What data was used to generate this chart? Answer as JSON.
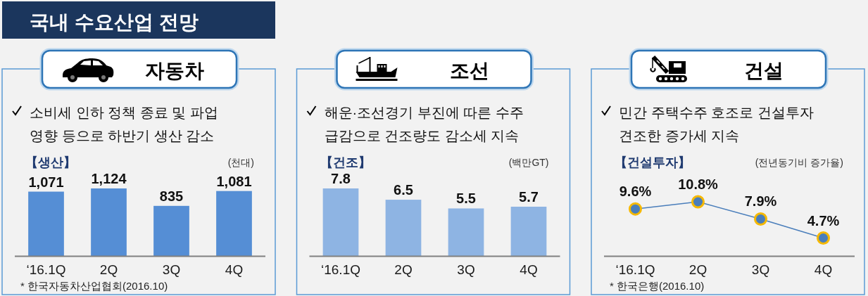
{
  "chart_data": [
    {
      "type": "other",
      "title": "국내 수요산업 전망"
    },
    {
      "type": "bar",
      "title": "자동차",
      "subtitle": "소비세 인하 정책 종료 및 파업 영향 등으로 하반기 생산 감소",
      "ylabel": "(천대)",
      "annotations": [
        "【생산】",
        "* 한국자동차산업협회(2016.10)"
      ],
      "categories": [
        "‘16.1Q",
        "2Q",
        "3Q",
        "4Q"
      ],
      "values": [
        1071,
        1124,
        835,
        1081
      ],
      "value_labels": [
        "1,071",
        "1,124",
        "835",
        "1,081"
      ],
      "color": "#558ed5",
      "tick_labels": "x"
    },
    {
      "type": "bar",
      "title": "조선",
      "subtitle": "해운·조선경기 부진에 따른 수주 급감으로 건조량도 감소세 지속",
      "ylabel": "(백만GT)",
      "annotations": [
        "【건조】"
      ],
      "categories": [
        "‘16.1Q",
        "2Q",
        "3Q",
        "4Q"
      ],
      "values": [
        7.8,
        6.5,
        5.5,
        5.7
      ],
      "color": "#8eb4e3",
      "data_labels": true,
      "tick_labels": "x"
    },
    {
      "type": "line",
      "title": "건설",
      "subtitle": "민간 주택수주 호조로 건설투자 견조한 증가세 지속",
      "ylabel": "(전년동기비 증가율)",
      "annotations": [
        "【건설투자】",
        "* 한국은행(2016.10)"
      ],
      "categories": [
        "‘16.1Q",
        "2Q",
        "3Q",
        "4Q"
      ],
      "series": [
        {
          "values": [
            9.6,
            10.8,
            7.9,
            4.7
          ],
          "value_labels": [
            "9.6%",
            "10.8%",
            "7.9%",
            "4.7%"
          ],
          "color": "#4a7ebb"
        }
      ],
      "marker": "circle",
      "tick_labels": "x"
    }
  ]
}
